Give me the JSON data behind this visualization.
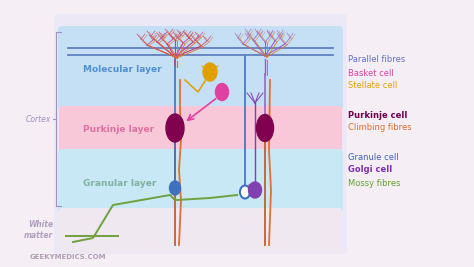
{
  "bg_color": "#f5eef5",
  "diagram_bg": "#ede8f5",
  "molecular_color": "#c5dff5",
  "purkinje_layer_color": "#f8c8d8",
  "granular_color": "#c8e8f5",
  "white_matter_color": "#f0e8f0",
  "parallel_fiber_color": "#6080c0",
  "purkinje_dendrite_color": "#c04080",
  "purkinje_cell_color": "#800050",
  "purkinje_axon_color": "#c06030",
  "climbing_fiber_color": "#e07030",
  "mossy_fiber_color": "#70a040",
  "granule_cell_color": "#4070c0",
  "golgi_cell_color": "#8040b0",
  "stellate_cell_color": "#e0a000",
  "stellate_axon_color": "#e0a000",
  "basket_cell_color": "#e040a0",
  "second_purkinje_dendrite_color": "#9060c0",
  "layer_label_mol": "#5090d0",
  "layer_label_pur": "#e070a0",
  "layer_label_gran": "#80b0a0",
  "cortex_color": "#a090c0",
  "white_matter_text": "#b0a0c0",
  "legend": [
    {
      "text": "Parallel fibres",
      "color": "#6070c0"
    },
    {
      "text": "Basket cell",
      "color": "#e040a0"
    },
    {
      "text": "Stellate cell",
      "color": "#e0a000"
    },
    {
      "text": "Purkinje cell",
      "color": "#700050"
    },
    {
      "text": "Climbing fibres",
      "color": "#e07030"
    },
    {
      "text": "Granule cell",
      "color": "#4060c0"
    },
    {
      "text": "Golgi cell",
      "color": "#8030b0"
    },
    {
      "text": "Mossy fibres",
      "color": "#60a030"
    }
  ],
  "watermark": "GEEKYMEDICS.COM",
  "fig_w": 4.74,
  "fig_h": 2.67,
  "dpi": 100
}
